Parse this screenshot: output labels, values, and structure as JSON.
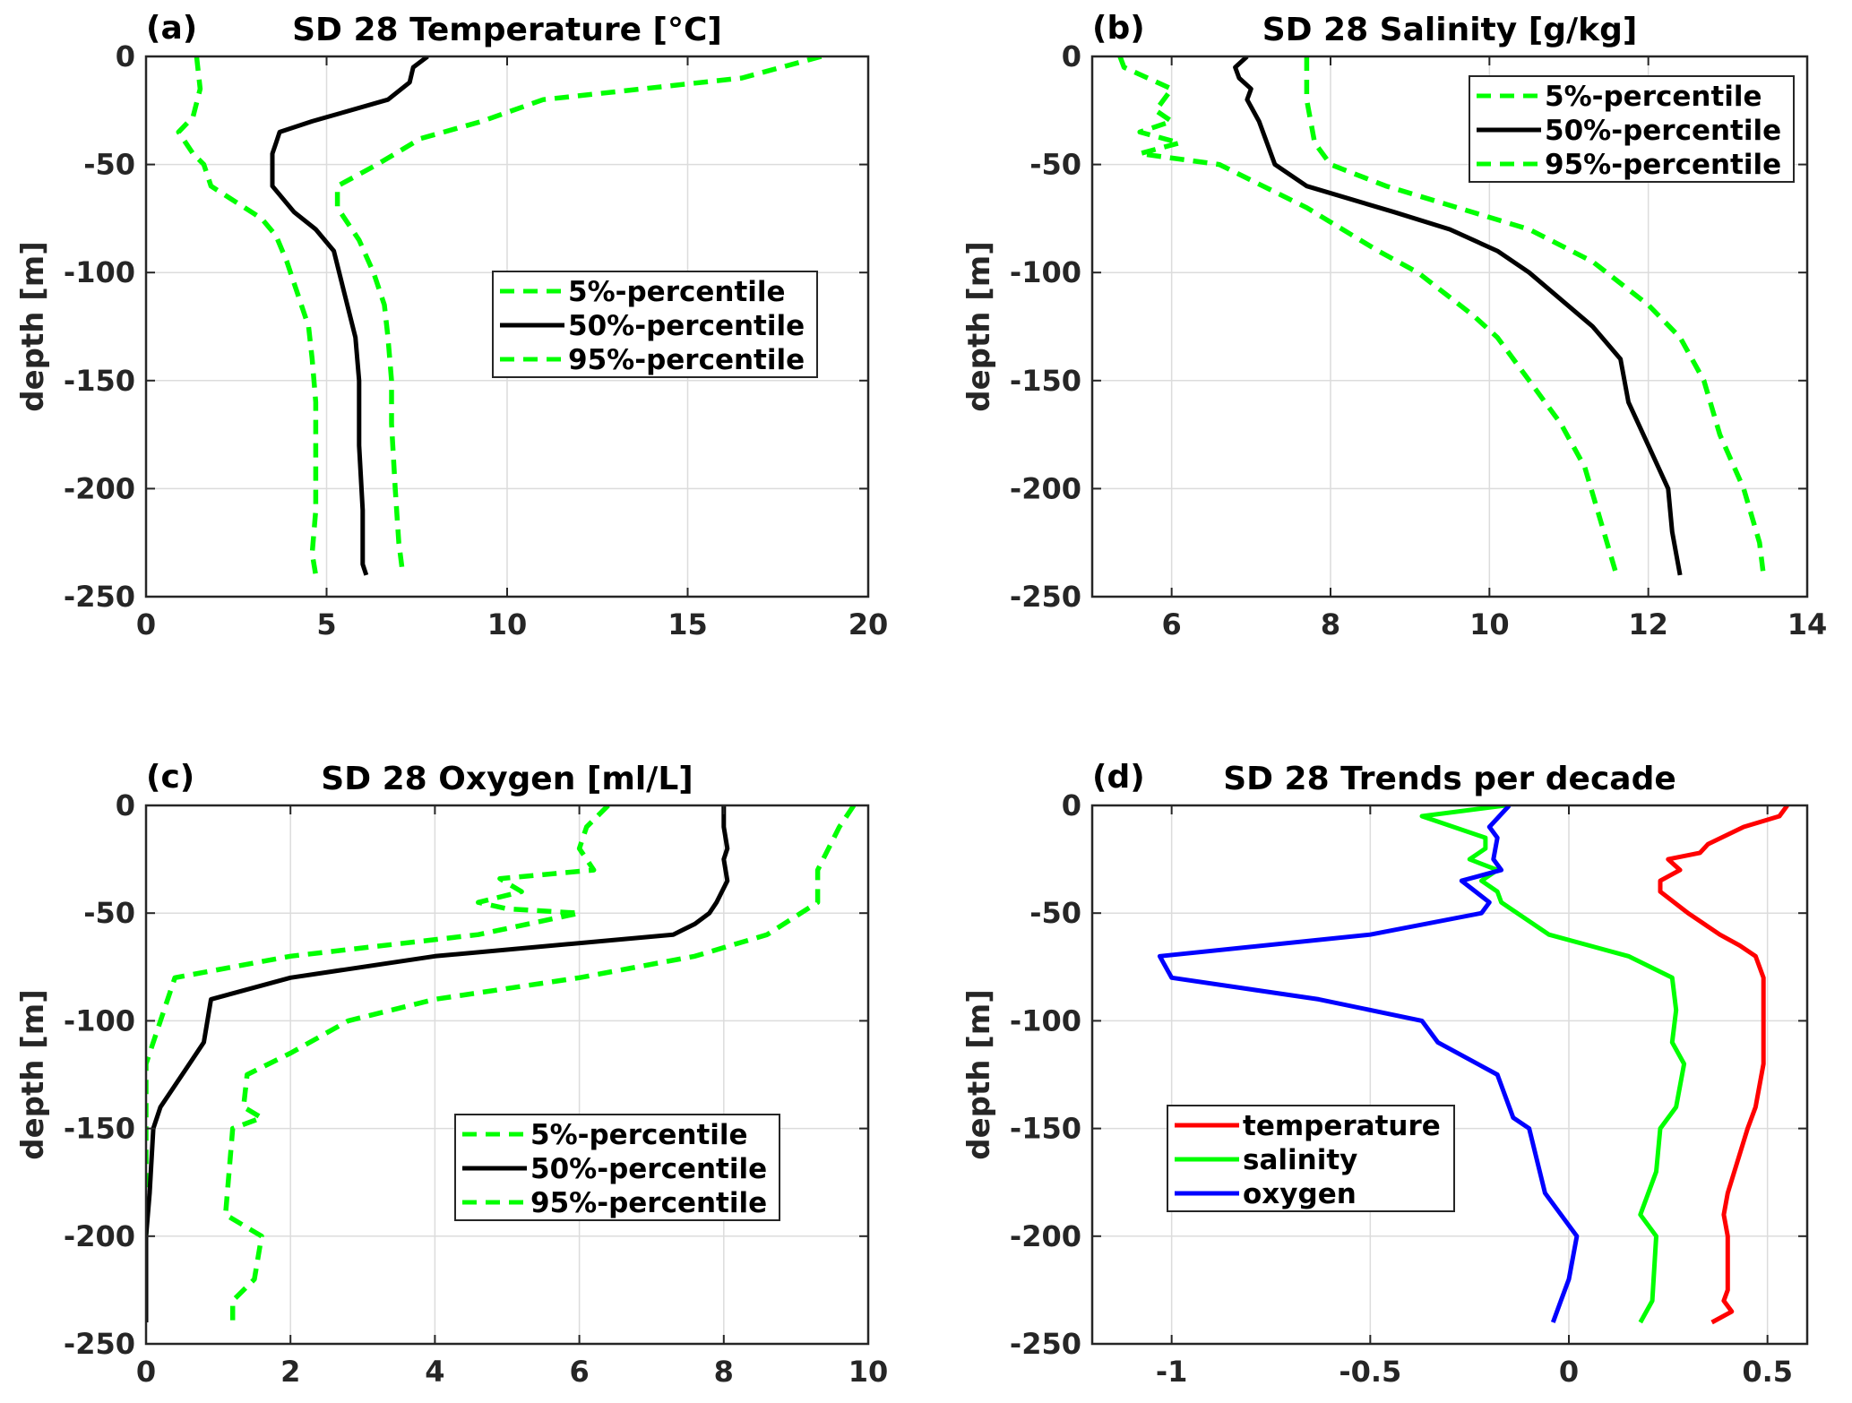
{
  "chart_data": [
    {
      "panel": "(a)",
      "type": "line",
      "title": "SD 28 Temperature [°C]",
      "xlabel": "",
      "ylabel": "depth [m]",
      "xlim": [
        0,
        20
      ],
      "ylim": [
        -250,
        0
      ],
      "xticks": [
        0,
        5,
        10,
        15,
        20
      ],
      "yticks": [
        0,
        -50,
        -100,
        -150,
        -200,
        -250
      ],
      "grid": true,
      "legend": {
        "position": "center-right",
        "entries": [
          "5%-percentile",
          "50%-percentile",
          "95%-percentile"
        ]
      },
      "series": [
        {
          "name": "5%-percentile",
          "color": "#00ff00",
          "style": "dashed",
          "x": [
            1.4,
            1.5,
            1.3,
            0.9,
            1.3,
            1.6,
            1.8,
            3.2,
            3.6,
            3.9,
            4.2,
            4.5,
            4.6,
            4.7,
            4.7,
            4.7,
            4.6,
            4.7
          ],
          "y": [
            0,
            -15,
            -28,
            -35,
            -45,
            -50,
            -60,
            -75,
            -83,
            -95,
            -110,
            -125,
            -140,
            -160,
            -190,
            -210,
            -230,
            -240
          ]
        },
        {
          "name": "50%-percentile",
          "color": "#000000",
          "style": "solid",
          "x": [
            7.8,
            7.4,
            7.3,
            6.7,
            4.6,
            3.7,
            3.6,
            3.5,
            3.5,
            4.1,
            4.7,
            5.2,
            5.5,
            5.8,
            5.9,
            5.9,
            6.0,
            6.0,
            6.1
          ],
          "y": [
            0,
            -5,
            -12,
            -20,
            -30,
            -35,
            -40,
            -45,
            -60,
            -72,
            -80,
            -90,
            -110,
            -130,
            -150,
            -180,
            -210,
            -235,
            -240
          ]
        },
        {
          "name": "95%-percentile",
          "color": "#00ff00",
          "style": "dashed",
          "x": [
            18.7,
            16.5,
            11.0,
            9.3,
            7.6,
            6.4,
            5.3,
            5.3,
            5.9,
            6.3,
            6.6,
            6.7,
            6.8,
            6.8,
            6.9,
            7.0,
            7.1
          ],
          "y": [
            0,
            -10,
            -20,
            -30,
            -38,
            -50,
            -60,
            -70,
            -85,
            -100,
            -115,
            -130,
            -150,
            -170,
            -200,
            -225,
            -238
          ]
        }
      ]
    },
    {
      "panel": "(b)",
      "type": "line",
      "title": "SD 28 Salinity [g/kg]",
      "xlabel": "",
      "ylabel": "depth [m]",
      "xlim": [
        5,
        14
      ],
      "ylim": [
        -250,
        0
      ],
      "xticks": [
        6,
        8,
        10,
        12,
        14
      ],
      "yticks": [
        0,
        -50,
        -100,
        -150,
        -200,
        -250
      ],
      "grid": true,
      "legend": {
        "position": "top-right",
        "entries": [
          "5%-percentile",
          "50%-percentile",
          "95%-percentile"
        ]
      },
      "series": [
        {
          "name": "5%-percentile",
          "color": "#00ff00",
          "style": "dashed",
          "x": [
            5.35,
            5.4,
            6.0,
            5.8,
            6.0,
            5.6,
            6.1,
            5.6,
            6.0,
            6.6,
            7.7,
            8.6,
            9.1,
            9.8,
            10.1,
            10.5,
            10.9,
            11.2,
            11.4,
            11.6
          ],
          "y": [
            0,
            -5,
            -15,
            -25,
            -30,
            -35,
            -40,
            -45,
            -47,
            -50,
            -70,
            -90,
            -100,
            -120,
            -130,
            -150,
            -170,
            -190,
            -215,
            -240
          ]
        },
        {
          "name": "50%-percentile",
          "color": "#000000",
          "style": "solid",
          "x": [
            6.95,
            6.8,
            6.85,
            7.0,
            6.95,
            7.1,
            7.3,
            7.7,
            8.8,
            9.5,
            10.1,
            10.5,
            11.3,
            11.65,
            11.75,
            12.0,
            12.25,
            12.3,
            12.4
          ],
          "y": [
            0,
            -5,
            -10,
            -15,
            -20,
            -30,
            -50,
            -60,
            -72,
            -80,
            -90,
            -100,
            -125,
            -140,
            -160,
            -180,
            -200,
            -220,
            -240
          ]
        },
        {
          "name": "95%-percentile",
          "color": "#00ff00",
          "style": "dashed",
          "x": [
            7.7,
            7.7,
            7.8,
            8.0,
            8.7,
            9.6,
            10.5,
            11.3,
            12.0,
            12.4,
            12.7,
            12.9,
            13.2,
            13.4,
            13.45
          ],
          "y": [
            0,
            -20,
            -40,
            -50,
            -60,
            -70,
            -80,
            -95,
            -115,
            -130,
            -150,
            -175,
            -200,
            -225,
            -240
          ]
        }
      ]
    },
    {
      "panel": "(c)",
      "type": "line",
      "title": "SD 28 Oxygen [ml/L]",
      "xlabel": "",
      "ylabel": "depth [m]",
      "xlim": [
        0,
        10
      ],
      "ylim": [
        -250,
        0
      ],
      "xticks": [
        0,
        2,
        4,
        6,
        8,
        10
      ],
      "yticks": [
        0,
        -50,
        -100,
        -150,
        -200,
        -250
      ],
      "grid": true,
      "legend": {
        "position": "lower-right",
        "entries": [
          "5%-percentile",
          "50%-percentile",
          "95%-percentile"
        ]
      },
      "series": [
        {
          "name": "5%-percentile",
          "color": "#00ff00",
          "style": "dashed",
          "x": [
            6.4,
            6.1,
            6.0,
            6.2,
            4.9,
            5.2,
            4.6,
            5.0,
            6.0,
            4.6,
            2.0,
            0.4,
            0.2,
            0.0,
            0.0,
            0.0
          ],
          "y": [
            0,
            -10,
            -20,
            -30,
            -34,
            -40,
            -45,
            -48,
            -50,
            -60,
            -70,
            -80,
            -100,
            -120,
            -170,
            -200
          ]
        },
        {
          "name": "50%-percentile",
          "color": "#000000",
          "style": "solid",
          "x": [
            8.0,
            8.0,
            8.05,
            8.0,
            8.05,
            7.9,
            7.8,
            7.6,
            7.3,
            4.0,
            2.0,
            0.9,
            0.8,
            0.6,
            0.2,
            0.1,
            0.05,
            0.0,
            0.0
          ],
          "y": [
            0,
            -10,
            -20,
            -25,
            -35,
            -45,
            -50,
            -55,
            -60,
            -70,
            -80,
            -90,
            -110,
            -120,
            -140,
            -150,
            -180,
            -200,
            -240
          ]
        },
        {
          "name": "95%-percentile",
          "color": "#00ff00",
          "style": "dashed",
          "x": [
            9.8,
            9.6,
            9.3,
            9.3,
            8.6,
            7.6,
            6.0,
            4.0,
            2.8,
            2.0,
            1.4,
            1.35,
            1.6,
            1.2,
            1.15,
            1.1,
            1.6,
            1.5,
            1.2,
            1.2
          ],
          "y": [
            0,
            -10,
            -30,
            -45,
            -60,
            -70,
            -80,
            -90,
            -100,
            -115,
            -125,
            -140,
            -145,
            -150,
            -170,
            -190,
            -200,
            -220,
            -230,
            -240
          ]
        }
      ]
    },
    {
      "panel": "(d)",
      "type": "line",
      "title": "SD 28 Trends per decade",
      "xlabel": "",
      "ylabel": "depth [m]",
      "xlim": [
        -1.2,
        0.6
      ],
      "ylim": [
        -250,
        0
      ],
      "xticks": [
        -1,
        -0.5,
        0,
        0.5
      ],
      "yticks": [
        0,
        -50,
        -100,
        -150,
        -200,
        -250
      ],
      "grid": true,
      "legend": {
        "position": "lower-left",
        "entries": [
          "temperature",
          "salinity",
          "oxygen"
        ]
      },
      "series": [
        {
          "name": "temperature",
          "color": "#ff0000",
          "style": "solid",
          "x": [
            0.55,
            0.53,
            0.44,
            0.35,
            0.33,
            0.25,
            0.28,
            0.23,
            0.23,
            0.3,
            0.38,
            0.43,
            0.47,
            0.49,
            0.49,
            0.49,
            0.47,
            0.45,
            0.4,
            0.39,
            0.4,
            0.4,
            0.39,
            0.41,
            0.36
          ],
          "y": [
            0,
            -5,
            -10,
            -18,
            -22,
            -25,
            -30,
            -35,
            -40,
            -50,
            -60,
            -65,
            -70,
            -80,
            -100,
            -120,
            -140,
            -150,
            -180,
            -190,
            -200,
            -225,
            -230,
            -235,
            -240
          ]
        },
        {
          "name": "salinity",
          "color": "#00ff00",
          "style": "solid",
          "x": [
            -0.16,
            -0.37,
            -0.21,
            -0.21,
            -0.25,
            -0.18,
            -0.22,
            -0.18,
            -0.17,
            -0.05,
            0.15,
            0.26,
            0.27,
            0.26,
            0.29,
            0.27,
            0.23,
            0.22,
            0.18,
            0.22,
            0.21,
            0.18
          ],
          "y": [
            0,
            -5,
            -15,
            -20,
            -25,
            -30,
            -35,
            -40,
            -45,
            -60,
            -70,
            -80,
            -95,
            -110,
            -120,
            -140,
            -150,
            -170,
            -190,
            -200,
            -230,
            -240
          ]
        },
        {
          "name": "oxygen",
          "color": "#0000ff",
          "style": "solid",
          "x": [
            -0.15,
            -0.2,
            -0.18,
            -0.19,
            -0.17,
            -0.27,
            -0.2,
            -0.22,
            -0.5,
            -1.03,
            -1.0,
            -0.63,
            -0.37,
            -0.33,
            -0.18,
            -0.14,
            -0.1,
            -0.06,
            0.02,
            0.0,
            -0.02,
            -0.04
          ],
          "y": [
            0,
            -10,
            -15,
            -25,
            -30,
            -35,
            -45,
            -50,
            -60,
            -70,
            -80,
            -90,
            -100,
            -110,
            -125,
            -145,
            -150,
            -180,
            -200,
            -220,
            -230,
            -240
          ]
        }
      ]
    }
  ]
}
